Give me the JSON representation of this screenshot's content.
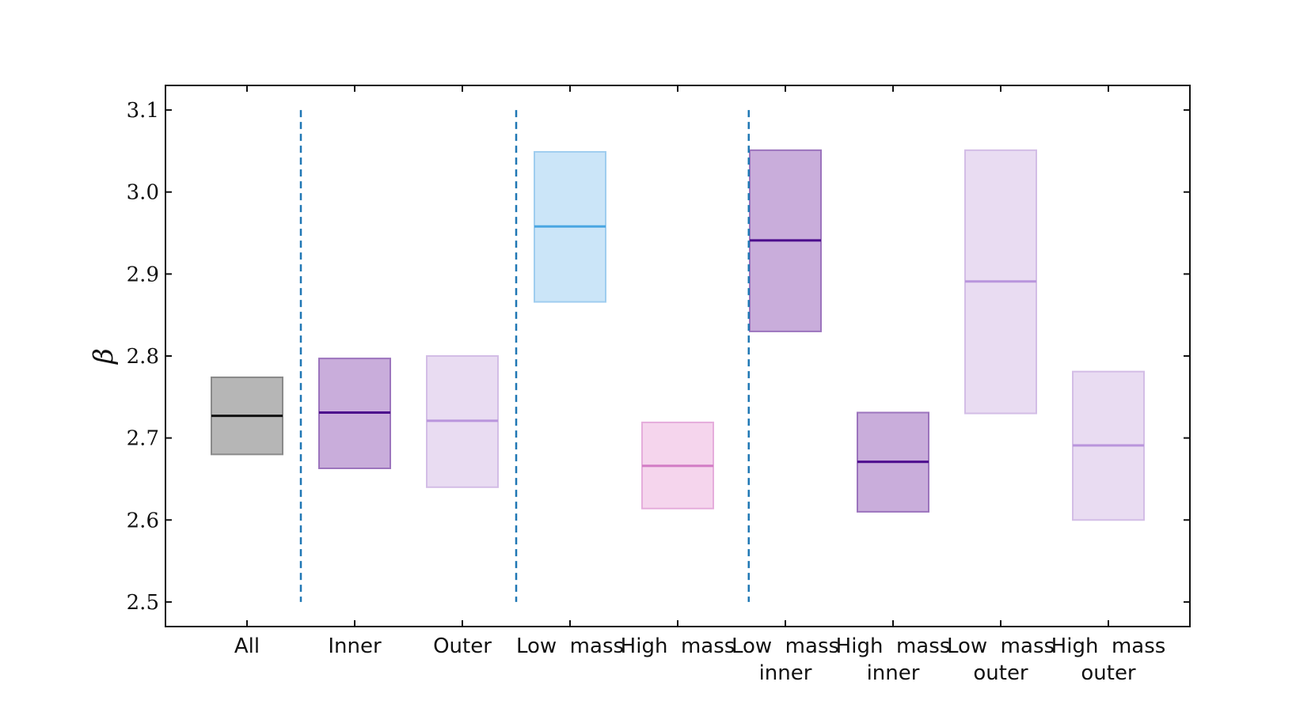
{
  "chart_data": {
    "type": "box",
    "ylabel": "β",
    "ylim": [
      2.47,
      3.13
    ],
    "yticks": [
      "2.5",
      "2.6",
      "2.7",
      "2.8",
      "2.9",
      "3.0",
      "3.1"
    ],
    "categories": [
      [
        "All"
      ],
      [
        "Inner"
      ],
      [
        "Outer"
      ],
      [
        "Low  mass"
      ],
      [
        "High  mass"
      ],
      [
        "Low  mass",
        "inner"
      ],
      [
        "High  mass",
        "inner"
      ],
      [
        "Low  mass",
        "outer"
      ],
      [
        "High  mass",
        "outer"
      ]
    ],
    "series": [
      {
        "low": 2.68,
        "median": 2.727,
        "high": 2.774,
        "fill": "#9e9e9e",
        "edge": "#8a8a8a",
        "line": "#111111",
        "opacity": 0.75
      },
      {
        "low": 2.663,
        "median": 2.731,
        "high": 2.797,
        "fill": "#b792cf",
        "edge": "#9c74bd",
        "line": "#4b0a8c",
        "opacity": 0.75
      },
      {
        "low": 2.64,
        "median": 2.721,
        "high": 2.8,
        "fill": "#e1d0ee",
        "edge": "#d3bde6",
        "line": "#b995dc",
        "opacity": 0.75
      },
      {
        "low": 2.866,
        "median": 2.958,
        "high": 3.049,
        "fill": "#b9dcf6",
        "edge": "#9fcdef",
        "line": "#4aa6e2",
        "opacity": 0.75
      },
      {
        "low": 2.614,
        "median": 2.666,
        "high": 2.719,
        "fill": "#f1c7e7",
        "edge": "#e5addc",
        "line": "#d27bc5",
        "opacity": 0.75
      },
      {
        "low": 2.83,
        "median": 2.941,
        "high": 3.051,
        "fill": "#b792cf",
        "edge": "#9c74bd",
        "line": "#4b0a8c",
        "opacity": 0.75
      },
      {
        "low": 2.61,
        "median": 2.671,
        "high": 2.731,
        "fill": "#b792cf",
        "edge": "#9c74bd",
        "line": "#4b0a8c",
        "opacity": 0.75
      },
      {
        "low": 2.73,
        "median": 2.891,
        "high": 3.051,
        "fill": "#e1d0ee",
        "edge": "#d3bde6",
        "line": "#b995dc",
        "opacity": 0.75
      },
      {
        "low": 2.6,
        "median": 2.691,
        "high": 2.781,
        "fill": "#e1d0ee",
        "edge": "#d3bde6",
        "line": "#b995dc",
        "opacity": 0.75
      }
    ],
    "dividers": [
      {
        "after_index": 0.5,
        "y_range": [
          2.5,
          3.1
        ]
      },
      {
        "after_index": 2.5,
        "y_range": [
          2.5,
          3.1
        ]
      },
      {
        "after_index": 4.66,
        "y_range": [
          2.5,
          3.1
        ]
      }
    ],
    "divider_color": "#1f77b4",
    "grid": false,
    "legend": "none"
  }
}
